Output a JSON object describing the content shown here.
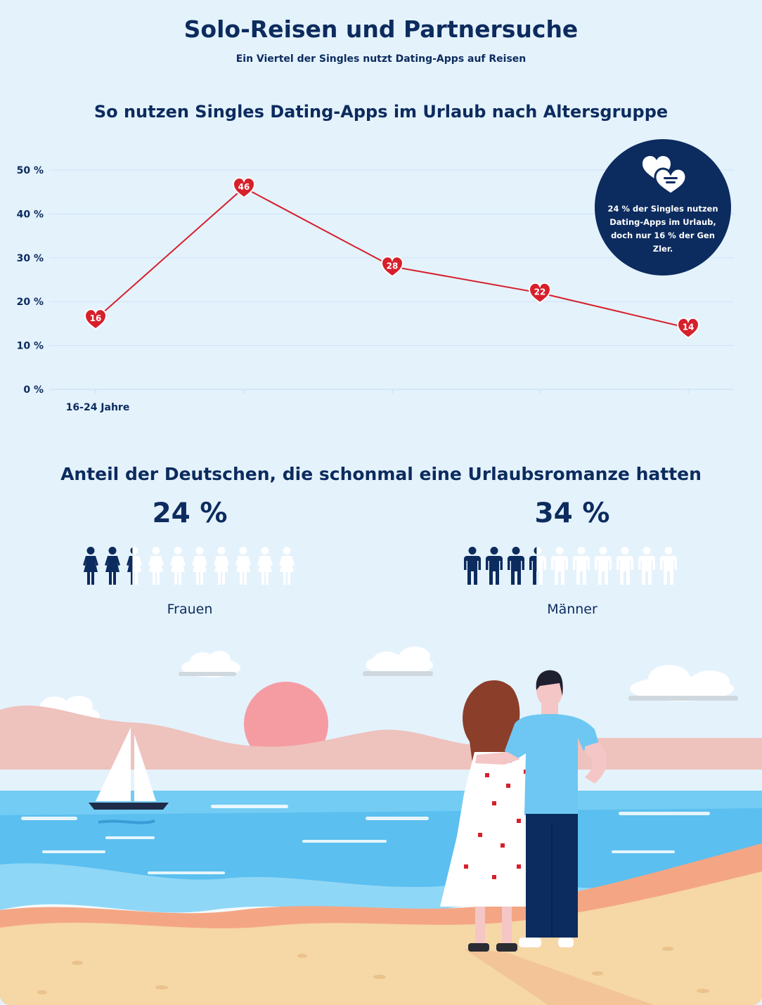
{
  "header": {
    "title": "Solo-Reisen und Partnersuche",
    "subtitle": "Ein Viertel der Singles nutzt Dating-Apps auf Reisen"
  },
  "chart_title": "So nutzen Singles Dating-Apps im Urlaub nach Altersgruppe",
  "chart_data": {
    "type": "line",
    "title": "So nutzen Singles Dating-Apps im Urlaub nach Altersgruppe",
    "categories": [
      "16-24 Jahre",
      "",
      "",
      "",
      ""
    ],
    "values": [
      16,
      46,
      28,
      22,
      14
    ],
    "ylim": [
      0,
      50
    ],
    "yticks": [
      "0 %",
      "10 %",
      "20 %",
      "30 %",
      "40 %",
      "50 %"
    ],
    "ytick_values": [
      0,
      10,
      20,
      30,
      40,
      50
    ],
    "grid": true,
    "line_color": "#d6202b",
    "marker": "heart"
  },
  "callout": {
    "icon": "chat-hearts-icon",
    "text": "24 % der Singles nutzen Dating-Apps im Urlaub, doch nur 16 % der Gen Zler."
  },
  "romance": {
    "title": "Anteil der Deutschen, die schonmal eine Urlaubsromanze hatten",
    "women": {
      "percent_label": "24 %",
      "label": "Frauen",
      "share": 0.24,
      "icon": "woman-icon"
    },
    "men": {
      "percent_label": "34 %",
      "label": "Männer",
      "share": 0.34,
      "icon": "man-icon"
    }
  },
  "colors": {
    "navy": "#0c2b5e",
    "red": "#d6202b",
    "background": "#e4f2fc",
    "sea": "#5bbfef",
    "sand": "#f6d7a6",
    "sun": "#f59ca3"
  },
  "scene": {
    "icon": "beach-couple-illustration"
  }
}
